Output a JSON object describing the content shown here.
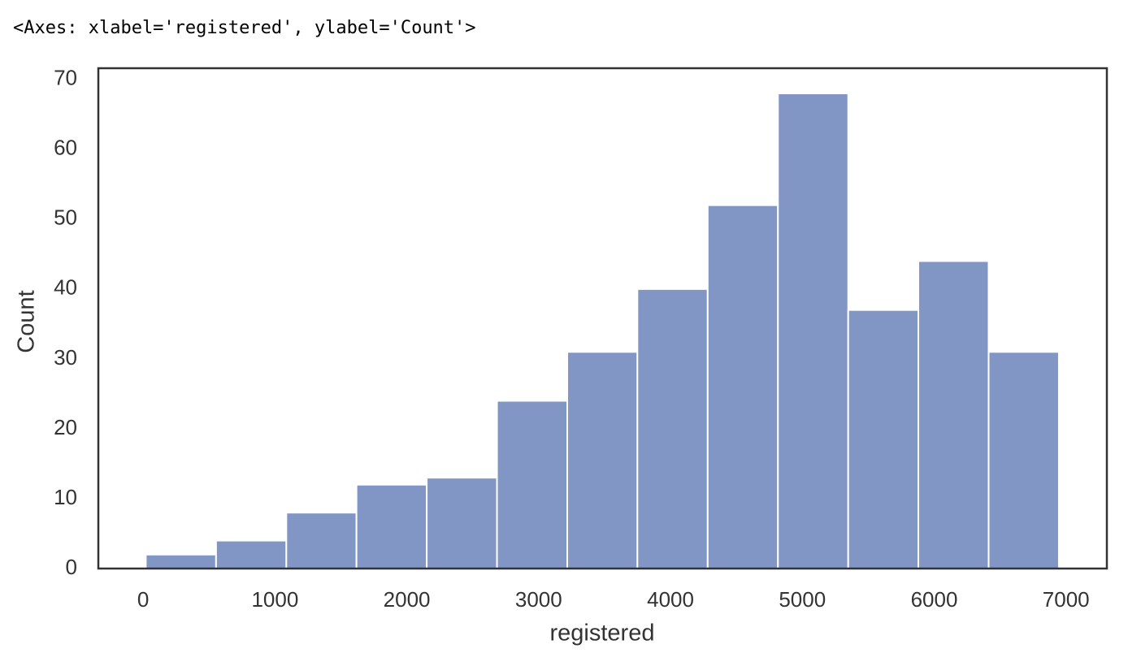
{
  "output_text": "<Axes: xlabel='registered', ylabel='Count'>",
  "chart_data": {
    "type": "histogram",
    "xlabel": "registered",
    "ylabel": "Count",
    "bins": [
      20,
      553,
      1086,
      1618,
      2151,
      2684,
      3217,
      3749,
      4282,
      4815,
      5348,
      5880,
      6413,
      6946
    ],
    "values": [
      2,
      4,
      8,
      12,
      13,
      24,
      31,
      40,
      52,
      68,
      37,
      44,
      31
    ],
    "color": "#8196c4",
    "xlim": [
      -340,
      7310
    ],
    "ylim": [
      0,
      71.6
    ],
    "xticks": [
      0,
      1000,
      2000,
      3000,
      4000,
      5000,
      6000,
      7000
    ],
    "yticks": [
      0,
      10,
      20,
      30,
      40,
      50,
      60,
      70
    ],
    "grid": false
  }
}
